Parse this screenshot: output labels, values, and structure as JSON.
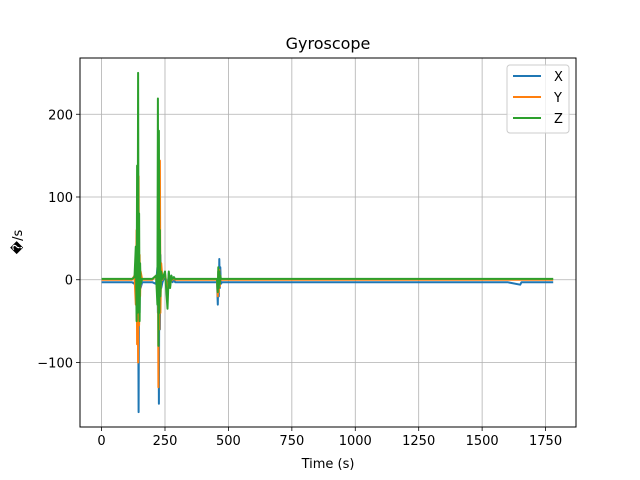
{
  "chart_data": {
    "type": "line",
    "title": "Gyroscope",
    "xlabel": "Time (s)",
    "ylabel": "�/s",
    "xlim": [
      -85,
      1870
    ],
    "ylim": [
      -178,
      268
    ],
    "x_ticks": [
      0,
      250,
      500,
      750,
      1000,
      1250,
      1500,
      1750
    ],
    "y_ticks": [
      -100,
      0,
      100,
      200
    ],
    "x_tick_labels": [
      "0",
      "250",
      "500",
      "750",
      "1000",
      "1250",
      "1500",
      "1750"
    ],
    "y_tick_labels": [
      "−100",
      "0",
      "100",
      "200"
    ],
    "grid": true,
    "legend_position": "top-right",
    "series": [
      {
        "name": "X",
        "color": "#1f77b4",
        "x": [
          0,
          120,
          130,
          135,
          138,
          140,
          142,
          144,
          146,
          148,
          150,
          152,
          154,
          160,
          200,
          215,
          220,
          222,
          224,
          226,
          228,
          230,
          232,
          235,
          240,
          250,
          260,
          265,
          270,
          275,
          280,
          285,
          290,
          300,
          400,
          455,
          458,
          460,
          462,
          464,
          466,
          468,
          470,
          475,
          480,
          600,
          800,
          1000,
          1200,
          1400,
          1600,
          1650,
          1655,
          1660,
          1700,
          1780
        ],
        "y": [
          -3,
          -3,
          -5,
          10,
          -20,
          40,
          -60,
          20,
          -160,
          30,
          -40,
          10,
          -10,
          -3,
          -3,
          -5,
          15,
          -40,
          40,
          -150,
          60,
          -60,
          30,
          -10,
          -3,
          5,
          -10,
          8,
          -5,
          5,
          -3,
          3,
          -3,
          -3,
          -3,
          -3,
          -30,
          10,
          -20,
          25,
          -10,
          15,
          -5,
          -3,
          -3,
          -3,
          -3,
          -3,
          -3,
          -3,
          -3,
          -6,
          -3,
          -3,
          -3,
          -3
        ]
      },
      {
        "name": "Y",
        "color": "#ff7f0e",
        "x": [
          0,
          120,
          130,
          135,
          138,
          140,
          142,
          144,
          146,
          148,
          150,
          152,
          154,
          160,
          200,
          215,
          220,
          222,
          224,
          226,
          228,
          230,
          232,
          235,
          240,
          250,
          260,
          265,
          270,
          275,
          280,
          285,
          290,
          300,
          400,
          455,
          458,
          460,
          462,
          464,
          466,
          468,
          470,
          475,
          480,
          600,
          800,
          1000,
          1200,
          1400,
          1600,
          1650,
          1700,
          1780
        ],
        "y": [
          0,
          0,
          5,
          -30,
          60,
          -78,
          90,
          -100,
          125,
          -55,
          30,
          -20,
          10,
          0,
          0,
          5,
          -20,
          50,
          -130,
          140,
          -60,
          144,
          -40,
          20,
          0,
          8,
          -15,
          5,
          -8,
          3,
          0,
          2,
          0,
          0,
          0,
          0,
          -20,
          10,
          -15,
          12,
          -8,
          5,
          0,
          0,
          0,
          0,
          0,
          0,
          0,
          0,
          0,
          0,
          0,
          0
        ]
      },
      {
        "name": "Z",
        "color": "#2ca02c",
        "x": [
          0,
          120,
          130,
          135,
          138,
          140,
          142,
          144,
          146,
          148,
          150,
          152,
          154,
          160,
          200,
          215,
          220,
          222,
          224,
          226,
          228,
          230,
          232,
          235,
          240,
          250,
          260,
          265,
          270,
          275,
          280,
          285,
          290,
          300,
          400,
          455,
          458,
          460,
          462,
          464,
          466,
          468,
          470,
          475,
          480,
          600,
          800,
          1000,
          1200,
          1400,
          1600,
          1650,
          1700,
          1780
        ],
        "y": [
          1,
          1,
          3,
          40,
          -50,
          138,
          -40,
          250,
          -20,
          80,
          -50,
          20,
          -5,
          1,
          1,
          5,
          -30,
          219,
          -80,
          180,
          -40,
          60,
          -20,
          10,
          1,
          10,
          -35,
          10,
          -10,
          5,
          1,
          3,
          1,
          1,
          1,
          1,
          -15,
          15,
          -10,
          10,
          -5,
          5,
          1,
          1,
          1,
          1,
          1,
          1,
          1,
          1,
          1,
          1,
          1,
          1
        ]
      }
    ]
  }
}
